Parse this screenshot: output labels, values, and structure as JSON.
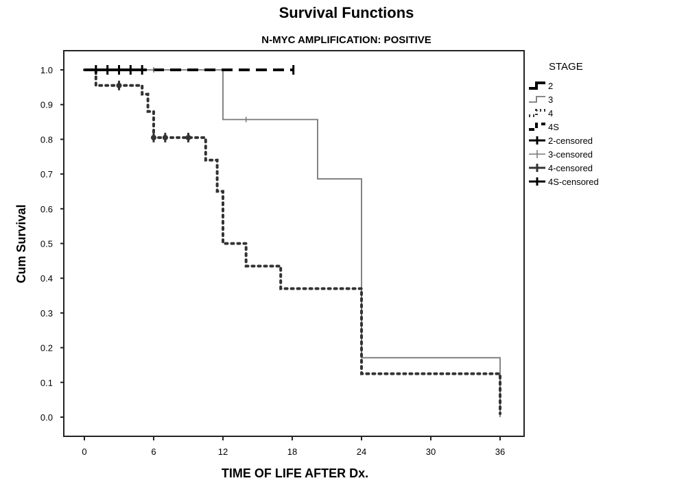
{
  "chart_data": {
    "type": "line",
    "title": "Survival Functions",
    "subtitle": "N-MYC AMPLIFICATION: POSITIVE",
    "xlabel": "TIME OF LIFE AFTER Dx.",
    "ylabel": "Cum Survival",
    "xlim": [
      0,
      36
    ],
    "ylim": [
      0.0,
      1.0
    ],
    "xticks": [
      "0",
      "6",
      "12",
      "18",
      "24",
      "30",
      "36"
    ],
    "yticks": [
      "0.0",
      "0.1",
      "0.2",
      "0.3",
      "0.4",
      "0.5",
      "0.6",
      "0.7",
      "0.8",
      "0.9",
      "1.0"
    ],
    "grid": false,
    "legend": {
      "title": "STAGE",
      "position": "right",
      "entries": [
        "2",
        "3",
        "4",
        "4S",
        "2-censored",
        "3-censored",
        "4-censored",
        "4S-censored"
      ]
    },
    "series": [
      {
        "name": "2",
        "style": "solid-thick",
        "color": "#000000",
        "steps": [
          [
            0,
            1.0
          ],
          [
            5,
            1.0
          ]
        ],
        "censored": [
          [
            1,
            1.0
          ],
          [
            2,
            1.0
          ],
          [
            3,
            1.0
          ],
          [
            4,
            1.0
          ],
          [
            5,
            1.0
          ]
        ]
      },
      {
        "name": "3",
        "style": "solid-thin",
        "color": "#777777",
        "steps": [
          [
            0,
            1.0
          ],
          [
            12,
            1.0
          ],
          [
            12,
            0.857
          ],
          [
            20.2,
            0.857
          ],
          [
            20.2,
            0.686
          ],
          [
            24,
            0.686
          ],
          [
            24,
            0.171
          ],
          [
            36,
            0.171
          ],
          [
            36,
            0.0
          ]
        ],
        "censored": [
          [
            6,
            1.0
          ],
          [
            14,
            0.857
          ]
        ]
      },
      {
        "name": "4",
        "style": "dotted",
        "color": "#333333",
        "steps": [
          [
            0,
            1.0
          ],
          [
            1,
            1.0
          ],
          [
            1,
            0.955
          ],
          [
            5,
            0.955
          ],
          [
            5,
            0.93
          ],
          [
            5.5,
            0.93
          ],
          [
            5.5,
            0.88
          ],
          [
            6,
            0.88
          ],
          [
            6,
            0.805
          ],
          [
            10.5,
            0.805
          ],
          [
            10.5,
            0.74
          ],
          [
            11.5,
            0.74
          ],
          [
            11.5,
            0.65
          ],
          [
            12,
            0.65
          ],
          [
            12,
            0.5
          ],
          [
            14,
            0.5
          ],
          [
            14,
            0.435
          ],
          [
            17,
            0.435
          ],
          [
            17,
            0.37
          ],
          [
            24,
            0.37
          ],
          [
            24,
            0.125
          ],
          [
            36,
            0.125
          ],
          [
            36,
            0.01
          ]
        ],
        "censored": [
          [
            3,
            0.955
          ],
          [
            6,
            0.805
          ],
          [
            7,
            0.805
          ],
          [
            9,
            0.805
          ]
        ]
      },
      {
        "name": "4S",
        "style": "dashed",
        "color": "#000000",
        "steps": [
          [
            0,
            1.0
          ],
          [
            18.1,
            1.0
          ]
        ],
        "censored": [
          [
            18.1,
            1.0
          ]
        ]
      }
    ]
  }
}
